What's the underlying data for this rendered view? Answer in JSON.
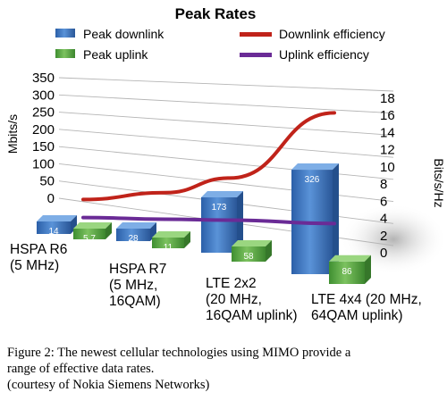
{
  "chart_data": {
    "type": "bar",
    "title": "Peak Rates",
    "categories": [
      [
        "HSPA R6",
        "(5 MHz)"
      ],
      [
        "HSPA R7",
        "(5 MHz,",
        "16QAM)"
      ],
      [
        "LTE 2x2",
        "(20 MHz,",
        "16QAM uplink)"
      ],
      [
        "LTE 4x4 (20 MHz,",
        "64QAM uplink)"
      ]
    ],
    "series": [
      {
        "name": "Peak downlink",
        "kind": "bar",
        "axis": "left",
        "color": "#3e79c4",
        "values": [
          14,
          28,
          173,
          326
        ]
      },
      {
        "name": "Peak uplink",
        "kind": "bar",
        "axis": "left",
        "color": "#5fae44",
        "values": [
          5.7,
          11,
          58,
          86
        ]
      },
      {
        "name": "Downlink efficiency",
        "kind": "line",
        "axis": "right",
        "color": "#c0231a",
        "values": [
          6.2,
          7.0,
          8.7,
          16.3
        ]
      },
      {
        "name": "Uplink efficiency",
        "kind": "line",
        "axis": "right",
        "color": "#6a2b96",
        "values": [
          4.1,
          3.9,
          3.8,
          3.4
        ]
      }
    ],
    "ylabel_left": "Mbits/s",
    "ylabel_right": "Bits/s/Hz",
    "yticks_left": [
      "0",
      "50",
      "100",
      "150",
      "200",
      "250",
      "300",
      "350"
    ],
    "yticks_right": [
      "0",
      "2",
      "4",
      "6",
      "8",
      "10",
      "12",
      "14",
      "16",
      "18"
    ],
    "ylim_left": [
      0,
      350
    ],
    "ylim_right": [
      0,
      18
    ],
    "legend_position": "top",
    "grid": true
  },
  "caption": {
    "line1": "Figure 2:  The newest cellular technologies using MIMO provide a",
    "line2": "range of effective data rates.",
    "line3": "(courtesy of Nokia Siemens Networks)"
  }
}
